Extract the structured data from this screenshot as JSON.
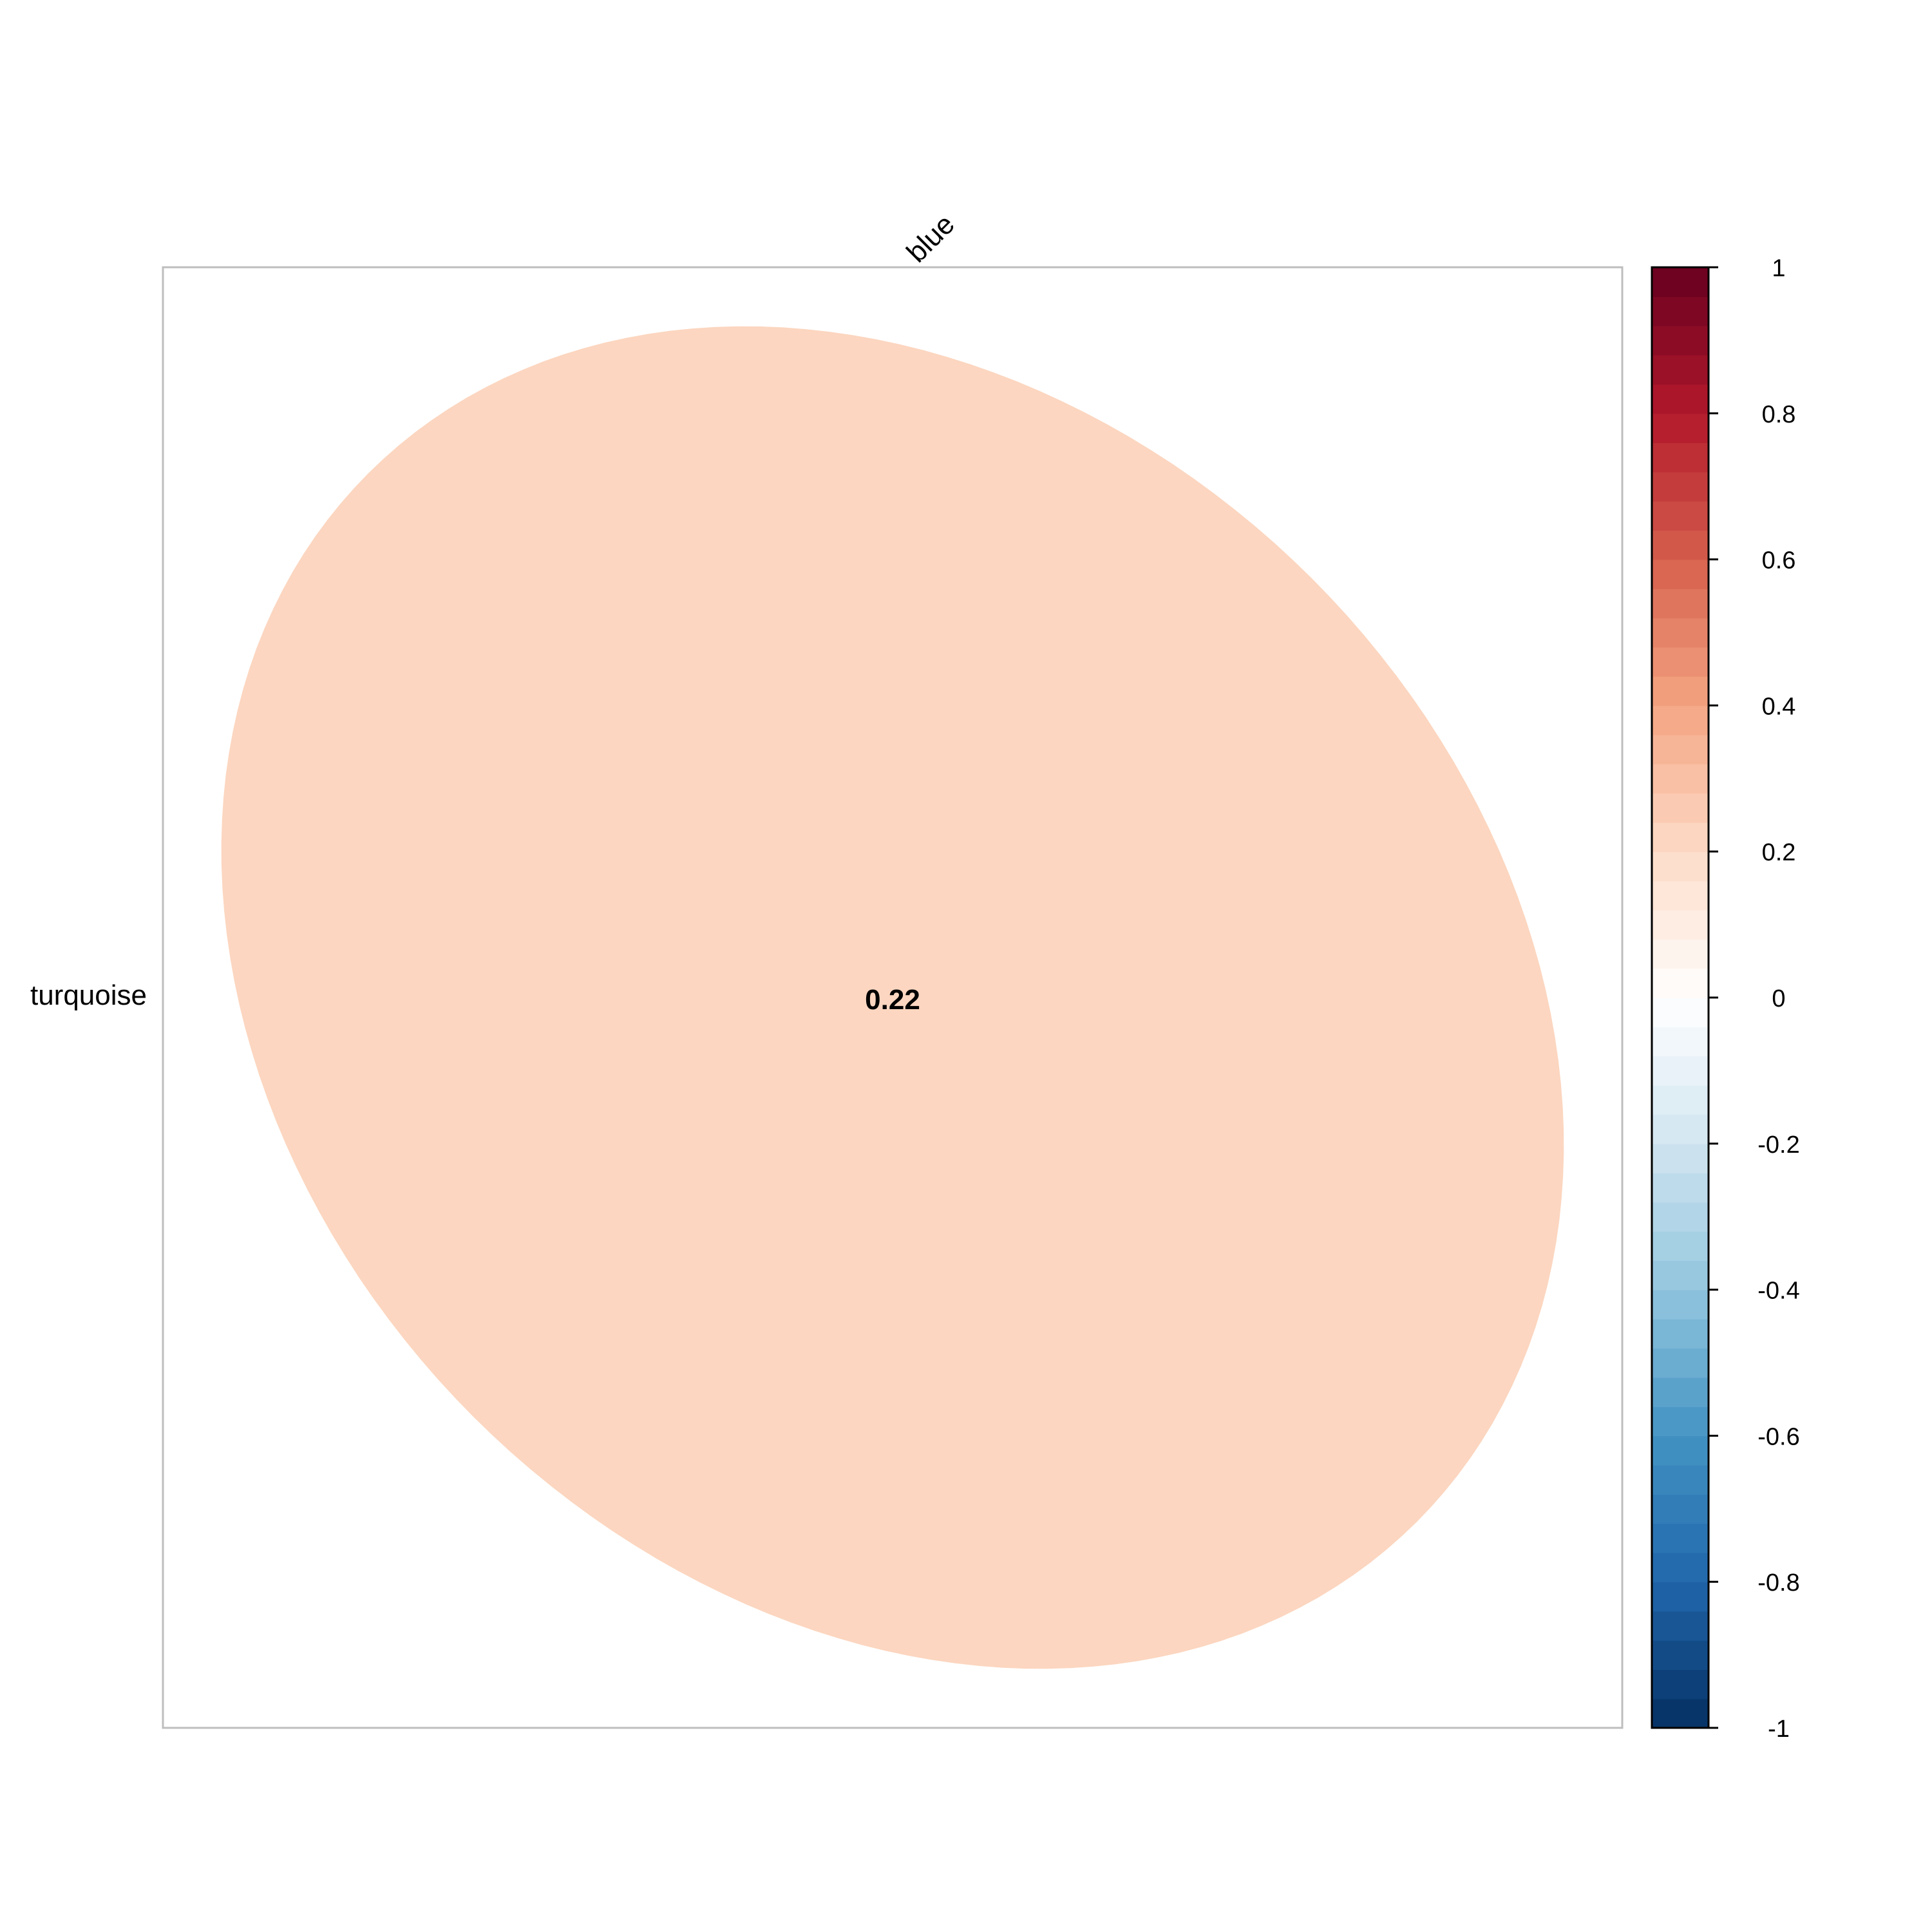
{
  "chart_data": {
    "type": "heatmap",
    "method": "ellipse",
    "rows": [
      "turquoise"
    ],
    "columns": [
      "blue"
    ],
    "values": [
      [
        0.22
      ]
    ],
    "value_labels": [
      [
        "0.22"
      ]
    ],
    "colorbar": {
      "range": [
        -1,
        1
      ],
      "ticks": [
        1,
        0.8,
        0.6,
        0.4,
        0.2,
        0,
        -0.2,
        -0.4,
        -0.6,
        -0.8,
        -1
      ],
      "tick_labels": [
        "1",
        "0.8",
        "0.6",
        "0.4",
        "0.2",
        "0",
        "-0.2",
        "-0.4",
        "-0.6",
        "-0.8",
        "-1"
      ],
      "steps": 50,
      "palette": [
        "#053061",
        "#2166AC",
        "#4393C3",
        "#92C5DE",
        "#D1E5F0",
        "#FFFFFF",
        "#FDDBC7",
        "#F4A582",
        "#D6604D",
        "#B2182B",
        "#67001F"
      ]
    },
    "cell_border_color": "#BEBEBE",
    "text_color": "#000000"
  }
}
